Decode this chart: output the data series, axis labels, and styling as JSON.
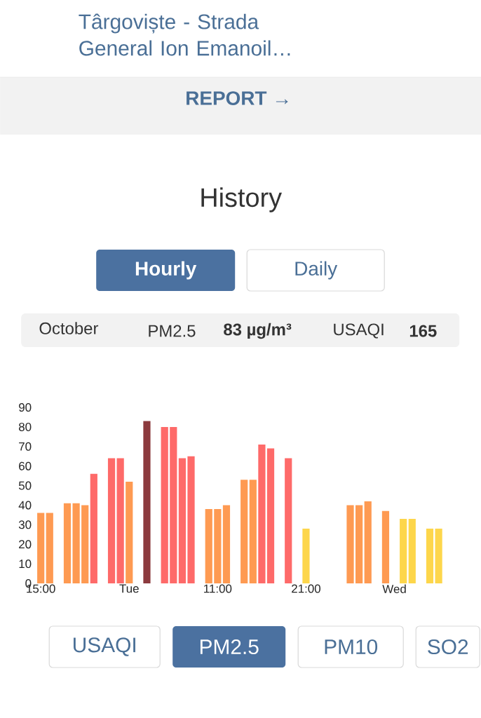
{
  "chart_data": {
    "type": "bar",
    "title": "Târgoviște - Strada General Ion Emanoil…",
    "subtitle": "History",
    "annotations": [
      "REPORT →",
      "Hourly",
      "Daily",
      "October",
      "PM2.5",
      "83 µg/m³",
      "USAQI",
      "165",
      "USAQI",
      "PM2.5",
      "PM10",
      "SO2"
    ],
    "categories": [
      "15:00",
      null,
      null,
      null,
      null,
      null,
      null,
      null,
      null,
      null,
      "Tue",
      null,
      null,
      null,
      null,
      null,
      null,
      null,
      null,
      null,
      "11:00",
      null,
      null,
      null,
      null,
      null,
      null,
      null,
      null,
      null,
      "21:00",
      null,
      null,
      null,
      null,
      null,
      null,
      null,
      null,
      null,
      "Wed",
      null,
      null,
      null,
      null,
      null
    ],
    "values": [
      36,
      36,
      null,
      41,
      41,
      40,
      56,
      null,
      64,
      64,
      52,
      null,
      83,
      null,
      80,
      80,
      64,
      65,
      null,
      38,
      38,
      40,
      null,
      53,
      53,
      71,
      69,
      null,
      64,
      null,
      28,
      null,
      null,
      null,
      null,
      40,
      40,
      42,
      null,
      37,
      null,
      33,
      33,
      null,
      28,
      28
    ],
    "colors": [
      "#fe9a52",
      "#fe9a52",
      null,
      "#fe9a52",
      "#fe9a52",
      "#fe9a52",
      "#fe6a69",
      null,
      "#fe6a69",
      "#fe6a69",
      "#fe9a52",
      null,
      "#8c3a3e",
      null,
      "#fe6a69",
      "#fe6a69",
      "#fe6a69",
      "#fe6a69",
      null,
      "#fe9a52",
      "#fe9a52",
      "#fe9a52",
      null,
      "#fe9a52",
      "#fe9a52",
      "#fe6a69",
      "#fe6a69",
      null,
      "#fe6a69",
      null,
      "#fdd64b",
      null,
      null,
      null,
      null,
      "#fe9a52",
      "#fe9a52",
      "#fe9a52",
      null,
      "#fe9a52",
      null,
      "#fdd64b",
      "#fdd64b",
      null,
      "#fdd64b",
      "#fdd64b"
    ],
    "ylim": [
      0,
      90
    ],
    "yticks": [
      0,
      10,
      20,
      30,
      40,
      50,
      60,
      70,
      80,
      90
    ],
    "grid": false
  }
}
